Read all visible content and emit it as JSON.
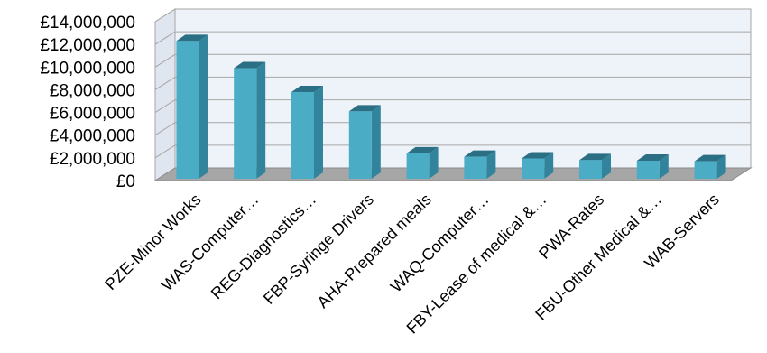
{
  "chart_data": {
    "type": "bar",
    "title": "",
    "xlabel": "",
    "ylabel": "",
    "categories": [
      "PZE-Minor Works",
      "WAS-Computer…",
      "REG-Diagnostics…",
      "FBP-Syringe Drivers",
      "AHA-Prepared meals",
      "WAQ-Computer…",
      "FBY-Lease of medical &…",
      "PWA-Rates",
      "FBU-Other Medical &…",
      "WAB-Servers"
    ],
    "values": [
      12300000,
      9900000,
      7800000,
      6100000,
      2400000,
      2100000,
      1950000,
      1800000,
      1750000,
      1700000
    ],
    "ylim": [
      0,
      14000000
    ],
    "y_ticks": [
      0,
      2000000,
      4000000,
      6000000,
      8000000,
      10000000,
      12000000,
      14000000
    ],
    "y_tick_labels": [
      "£0",
      "£2,000,000",
      "£4,000,000",
      "£6,000,000",
      "£8,000,000",
      "£10,000,000",
      "£12,000,000",
      "£14,000,000"
    ],
    "grid": true,
    "legend": "none",
    "style": "3d-column",
    "colors": {
      "bar_front": "#4bacc6",
      "bar_side": "#31849b",
      "bar_top": "#2a6f83",
      "back_wall": "#eef3f9",
      "wall_border": "#a6a6a6",
      "floor": "#a6a6a6",
      "gridline": "#a6a6a6"
    }
  }
}
